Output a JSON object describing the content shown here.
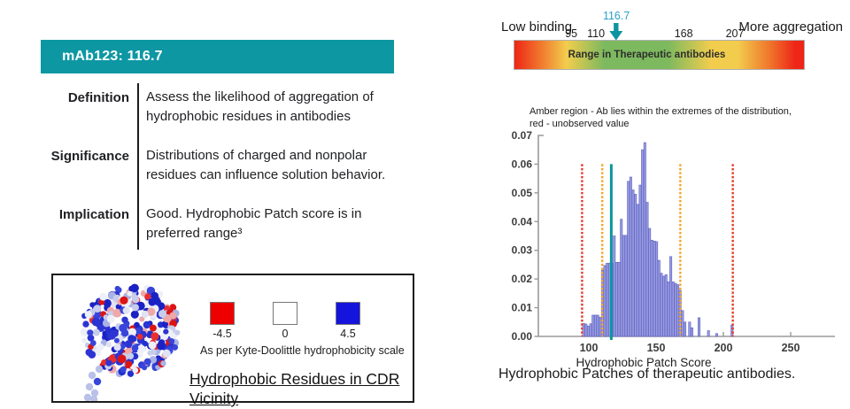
{
  "header": {
    "title": "mAb123: 116.7",
    "accent_color": "#0d97a3"
  },
  "info_rows": [
    {
      "label": "Definition",
      "text": "Assess the likelihood of aggregation of hydrophobic residues in antibodies"
    },
    {
      "label": "Significance",
      "text": "Distributions of charged and nonpolar residues can influence solution behavior."
    },
    {
      "label": "Implication",
      "text": "Good. Hydrophobic Patch score  is in preferred range³"
    }
  ],
  "figure_box": {
    "protein_icon": "protein-surface-render",
    "legend": {
      "items": [
        {
          "label": "-4.5",
          "color": "#ee0000"
        },
        {
          "label": "0",
          "color": "#ffffff"
        },
        {
          "label": "4.5",
          "color": "#1414dc"
        }
      ],
      "caption": "As per Kyte-Doolittle hydrophobicity scale"
    },
    "heading": "Hydrophobic Residues in CDR Vicinity"
  },
  "scale_bar": {
    "left_label": "Low binding",
    "right_label": "More aggregation",
    "bar_label": "Range in Therapeutic antibodies",
    "gradient_colors": [
      "#ee2517",
      "#f0772c",
      "#f2cd4d",
      "#7db95e"
    ],
    "marker": {
      "value": "116.7",
      "pos_pct": 35.3,
      "arrow_color": "#0d94a0",
      "text_color": "#2aa0c8"
    },
    "ticks": [
      {
        "value": "95",
        "pos_pct": 19.8
      },
      {
        "value": "110",
        "pos_pct": 28.3
      },
      {
        "value": "168",
        "pos_pct": 58.4
      },
      {
        "value": "207",
        "pos_pct": 76.0
      }
    ]
  },
  "chart_data": {
    "type": "bar",
    "title_line1": "Amber region - Ab lies within the extremes of the distribution,",
    "title_line2": "red - unobserved value",
    "xlabel": "Hydrophobic Patch Score",
    "caption": "Hydrophobic Patches of therapeutic antibodies.",
    "xlim": [
      62,
      281
    ],
    "ylim": [
      0,
      0.07
    ],
    "xticks": [
      100,
      150,
      200,
      250
    ],
    "yticks": [
      0.0,
      0.01,
      0.02,
      0.03,
      0.04,
      0.05,
      0.06,
      0.07
    ],
    "grid": false,
    "legend_position": "none",
    "bin_width": 1.75,
    "bar_fill": "#9b9ee2",
    "bar_stroke": "#6468c4",
    "bars": [
      [
        95.4,
        0.0045
      ],
      [
        97.15,
        0.0043
      ],
      [
        98.9,
        0.0036
      ],
      [
        100.65,
        0.0044
      ],
      [
        102.4,
        0.0074
      ],
      [
        104.15,
        0.0074
      ],
      [
        105.9,
        0.0074
      ],
      [
        107.65,
        0.0067
      ],
      [
        109.4,
        0.023
      ],
      [
        111.15,
        0.0247
      ],
      [
        112.9,
        0.0255
      ],
      [
        114.65,
        0.0255
      ],
      [
        116.4,
        0.0255
      ],
      [
        118.15,
        0.035
      ],
      [
        119.9,
        0.0258
      ],
      [
        121.65,
        0.0258
      ],
      [
        123.4,
        0.0408
      ],
      [
        125.15,
        0.0352
      ],
      [
        126.9,
        0.0352
      ],
      [
        128.65,
        0.054
      ],
      [
        130.4,
        0.0555
      ],
      [
        132.15,
        0.051
      ],
      [
        133.9,
        0.0495
      ],
      [
        135.65,
        0.046
      ],
      [
        137.4,
        0.0527
      ],
      [
        139.15,
        0.065
      ],
      [
        140.9,
        0.0675
      ],
      [
        142.65,
        0.0467
      ],
      [
        144.4,
        0.0376
      ],
      [
        146.15,
        0.0335
      ],
      [
        147.9,
        0.0332
      ],
      [
        149.65,
        0.033
      ],
      [
        151.4,
        0.0265
      ],
      [
        153.15,
        0.022
      ],
      [
        154.9,
        0.021
      ],
      [
        156.65,
        0.0215
      ],
      [
        158.4,
        0.019
      ],
      [
        160.15,
        0.0278
      ],
      [
        161.9,
        0.019
      ],
      [
        163.65,
        0.0185
      ],
      [
        165.4,
        0.018
      ],
      [
        167.15,
        0.016
      ],
      [
        168.9,
        0.009
      ],
      [
        170.65,
        0.005
      ],
      [
        174.15,
        0.005
      ],
      [
        175.9,
        0.003
      ],
      [
        181.15,
        0.0065
      ],
      [
        188.15,
        0.002
      ],
      [
        194.25,
        0.001
      ],
      [
        205.65,
        0.004
      ]
    ],
    "vlines": [
      {
        "x": 95,
        "color": "#e8392b",
        "style": "dashed"
      },
      {
        "x": 110,
        "color": "#f6a428",
        "style": "dashed"
      },
      {
        "x": 116.7,
        "color": "#0b96a0",
        "style": "solid"
      },
      {
        "x": 168,
        "color": "#f6a428",
        "style": "dashed"
      },
      {
        "x": 207,
        "color": "#e8392b",
        "style": "dashed"
      }
    ],
    "vline_top": 0.06
  }
}
